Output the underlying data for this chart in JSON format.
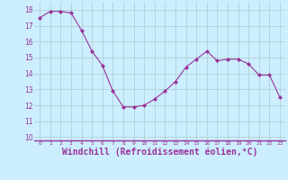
{
  "x": [
    0,
    1,
    2,
    3,
    4,
    5,
    6,
    7,
    8,
    9,
    10,
    11,
    12,
    13,
    14,
    15,
    16,
    17,
    18,
    19,
    20,
    21,
    22,
    23
  ],
  "y": [
    17.5,
    17.9,
    17.9,
    17.8,
    16.7,
    15.4,
    14.5,
    12.9,
    11.9,
    11.9,
    12.0,
    12.4,
    12.9,
    13.5,
    14.4,
    14.9,
    15.4,
    14.8,
    14.9,
    14.9,
    14.6,
    13.9,
    13.9,
    12.5
  ],
  "line_color": "#993399",
  "marker": "D",
  "marker_size": 2.0,
  "bg_color": "#cceeff",
  "grid_color": "#aacccc",
  "xlabel": "Windchill (Refroidissement éolien,°C)",
  "xlabel_fontsize": 7.0,
  "ylabel_ticks": [
    10,
    11,
    12,
    13,
    14,
    15,
    16,
    17,
    18
  ],
  "ylim": [
    9.8,
    18.5
  ],
  "xlim": [
    -0.5,
    23.5
  ],
  "xtick_labels": [
    "0",
    "1",
    "2",
    "3",
    "4",
    "5",
    "6",
    "7",
    "8",
    "9",
    "10",
    "11",
    "12",
    "13",
    "14",
    "15",
    "16",
    "17",
    "18",
    "19",
    "20",
    "21",
    "22",
    "23"
  ]
}
